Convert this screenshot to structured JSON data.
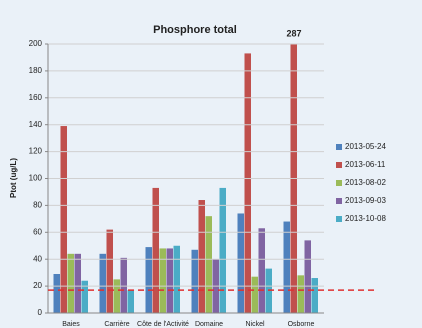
{
  "chart_data": {
    "type": "bar",
    "title": "Phosphore total",
    "y_label": "Ptot (ug/L)",
    "categories": [
      "Baies",
      "Carrière",
      "Côte de l'Activité",
      "Domaine",
      "Nickel",
      "Osborne"
    ],
    "series": [
      {
        "name": "2013-05-24",
        "color": "#4f81bd",
        "values": [
          29,
          44,
          49,
          47,
          74,
          68
        ]
      },
      {
        "name": "2013-06-11",
        "color": "#c0504d",
        "values": [
          139,
          62,
          93,
          84,
          193,
          287
        ],
        "value_labels": [
          null,
          null,
          null,
          null,
          null,
          "287"
        ]
      },
      {
        "name": "2013-08-02",
        "color": "#9bbb59",
        "values": [
          44,
          25,
          48,
          72,
          27,
          28
        ]
      },
      {
        "name": "2013-09-03",
        "color": "#8064a2",
        "values": [
          44,
          41,
          48,
          40,
          63,
          54
        ]
      },
      {
        "name": "2013-10-08",
        "color": "#4bacc6",
        "values": [
          24,
          17,
          50,
          93,
          33,
          26
        ]
      }
    ],
    "threshold": 17,
    "threshold_color": "#e03030",
    "ylim": [
      0,
      200
    ],
    "yticks": [
      0,
      20,
      40,
      60,
      80,
      100,
      120,
      140,
      160,
      180,
      200
    ],
    "grid": true,
    "legend": "right"
  }
}
